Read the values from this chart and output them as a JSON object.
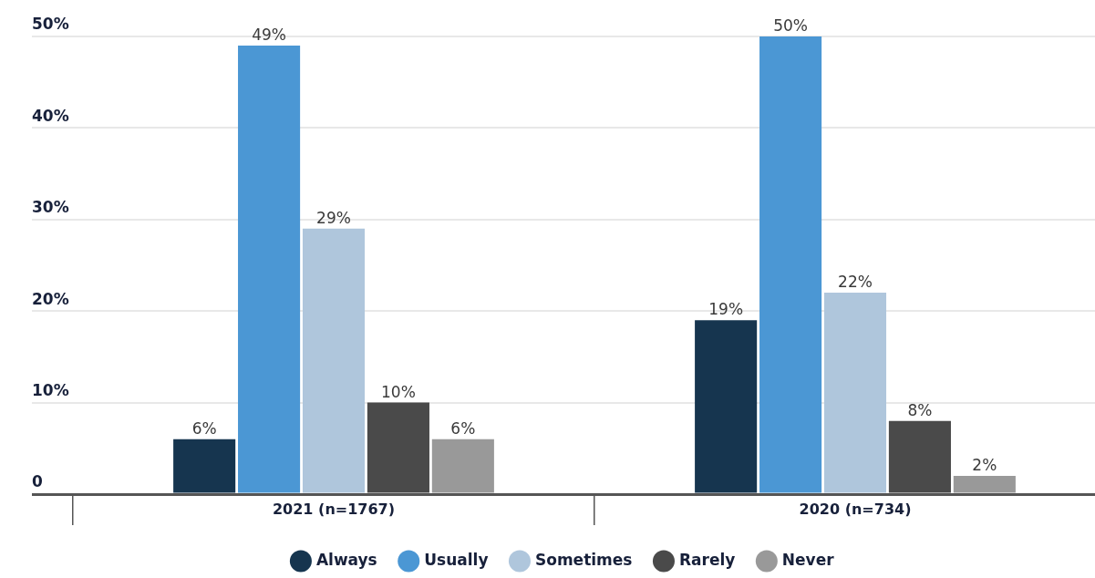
{
  "chart_data": {
    "type": "bar",
    "categories": [
      "2021 (n=1767)",
      "2020 (n=734)"
    ],
    "series": [
      {
        "name": "Always",
        "color": "#16354f",
        "values": [
          6,
          19
        ],
        "value_labels": [
          "6%",
          "19%"
        ]
      },
      {
        "name": "Usually",
        "color": "#4b97d4",
        "values": [
          49,
          50
        ],
        "value_labels": [
          "49%",
          "50%"
        ]
      },
      {
        "name": "Sometimes",
        "color": "#afc6dc",
        "values": [
          29,
          22
        ],
        "value_labels": [
          "29%",
          "22%"
        ]
      },
      {
        "name": "Rarely",
        "color": "#4a4a4a",
        "values": [
          10,
          8
        ],
        "value_labels": [
          "10%",
          "8%"
        ]
      },
      {
        "name": "Never",
        "color": "#999999",
        "values": [
          6,
          2
        ],
        "value_labels": [
          "6%",
          "2%"
        ]
      }
    ],
    "ylim": [
      0,
      50
    ],
    "yticks": [
      0,
      {
        "value": 10,
        "label": "10%"
      },
      {
        "value": 20,
        "label": "20%"
      },
      {
        "value": 30,
        "label": "30%"
      },
      {
        "value": 40,
        "label": "40%"
      },
      {
        "value": 50,
        "label": "50%"
      }
    ],
    "grid": "y",
    "legend": "bottom"
  }
}
